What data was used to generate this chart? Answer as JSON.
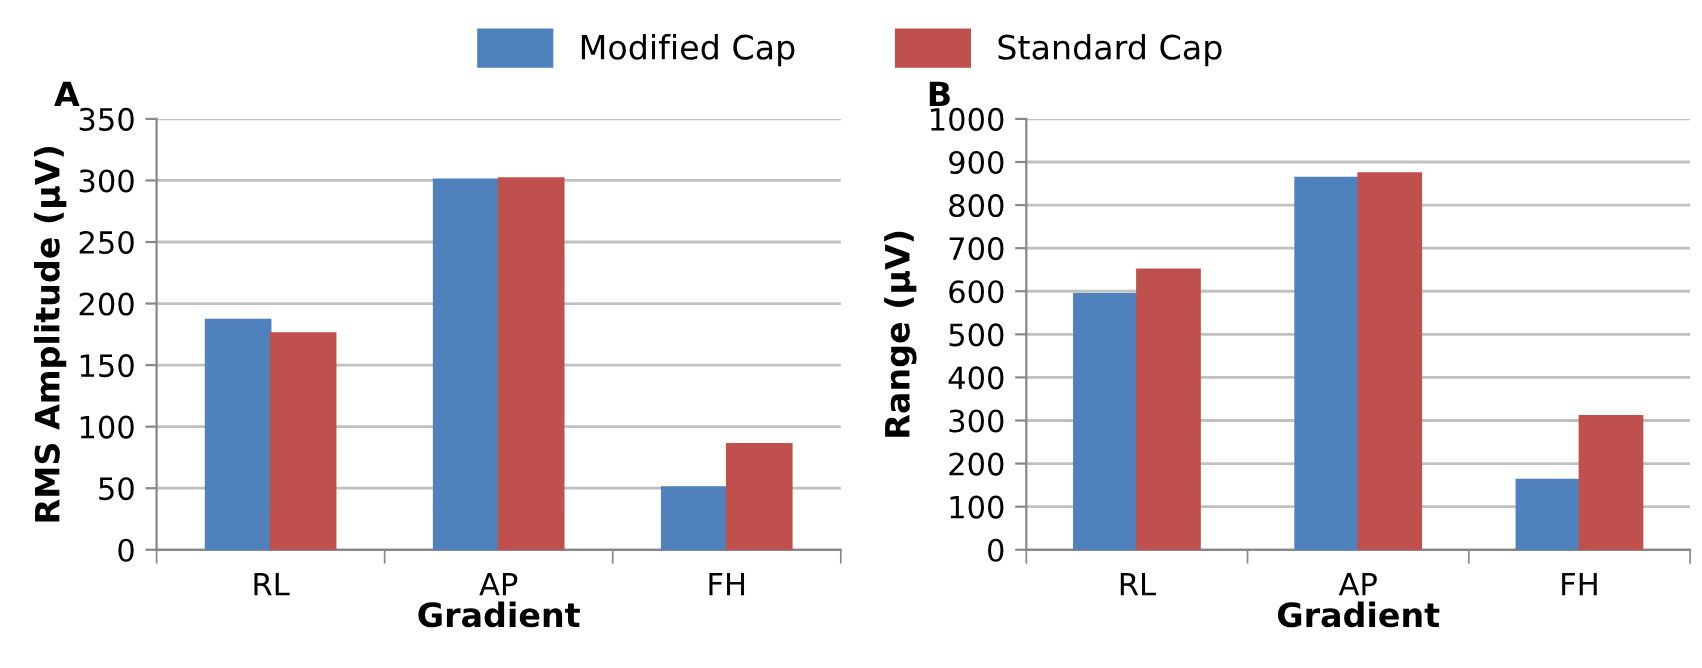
{
  "chart_data": [
    {
      "type": "bar",
      "title": "A",
      "xlabel": "Gradient",
      "ylabel": "RMS Amplitude (µV)",
      "categories": [
        "RL",
        "AP",
        "FH"
      ],
      "series": [
        {
          "name": "Modified Cap",
          "color": "#4f81bd",
          "values": [
            187,
            301,
            51
          ]
        },
        {
          "name": "Standard Cap",
          "color": "#c0504d",
          "values": [
            176,
            302,
            86
          ]
        }
      ],
      "ylim": [
        0,
        350
      ],
      "yticks": [
        0,
        50,
        100,
        150,
        200,
        250,
        300,
        350
      ],
      "grid": "y",
      "legend": "top"
    },
    {
      "type": "bar",
      "title": "B",
      "xlabel": "Gradient",
      "ylabel": "Range (µV)",
      "categories": [
        "RL",
        "AP",
        "FH"
      ],
      "series": [
        {
          "color": "#4f81bd",
          "values": [
            594,
            864,
            163
          ]
        },
        {
          "color": "#c0504d",
          "values": [
            651,
            874,
            311
          ]
        }
      ],
      "ylim": [
        0,
        1000
      ],
      "yticks": [
        0,
        100,
        200,
        300,
        400,
        500,
        600,
        700,
        800,
        900,
        1000
      ],
      "grid": "y"
    }
  ]
}
